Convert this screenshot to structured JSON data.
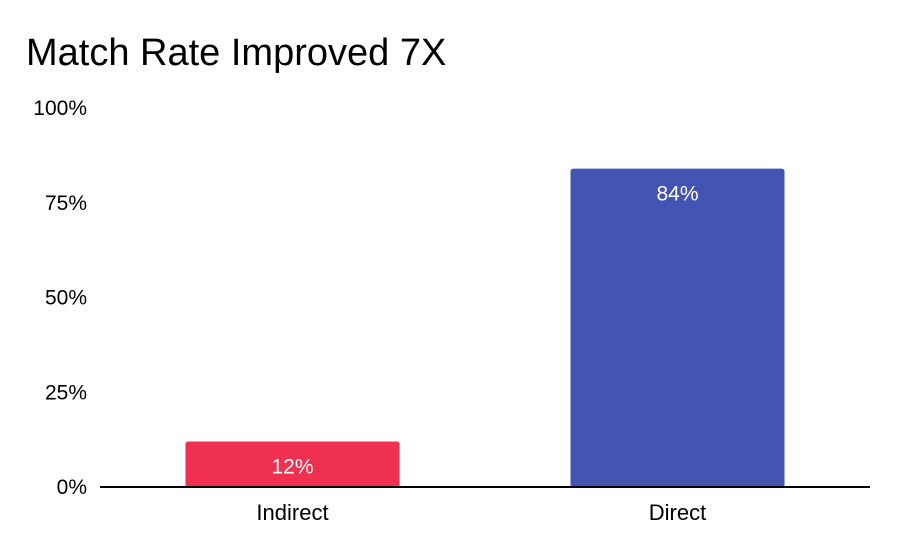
{
  "chart_data": {
    "type": "bar",
    "title": "Match Rate Improved 7X",
    "xlabel": "",
    "ylabel": "",
    "categories": [
      "Indirect",
      "Direct"
    ],
    "values": [
      12,
      84
    ],
    "data_labels": [
      "12%",
      "84%"
    ],
    "colors": [
      "#f03051",
      "#4353b1"
    ],
    "ylim": [
      0,
      100
    ],
    "yticks": [
      0,
      25,
      50,
      75,
      100
    ],
    "ytick_labels": [
      "0%",
      "25%",
      "50%",
      "75%",
      "100%"
    ],
    "grid": false,
    "legend": "none"
  }
}
